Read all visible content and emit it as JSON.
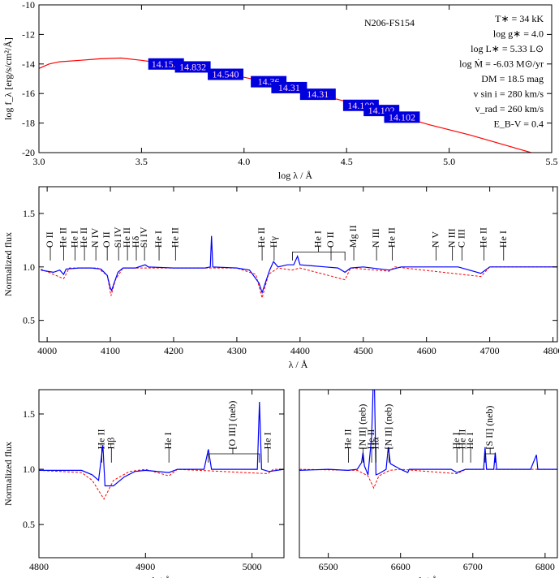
{
  "chart_data": [
    {
      "type": "sed",
      "title": "N206-FS154",
      "xlabel": "log λ / Å",
      "ylabel": "log f_λ [erg/s/cm²/Å]",
      "params": [
        "T∗ = 34 kK",
        "log g∗ = 4.0",
        "log L∗ = 5.33 L⊙",
        "log Ṁ = -6.03 M⊙/yr",
        "DM = 18.5 mag",
        "v sin i = 280 km/s",
        "v_rad = 260 km/s",
        "E_B-V = 0.4"
      ],
      "xlim": [
        3.0,
        5.5
      ],
      "ylim": [
        -20,
        -10
      ],
      "xticks": [
        {
          "value": 3,
          "label": "3.0"
        },
        3.5,
        {
          "value": 4,
          "label": "4.0"
        },
        4.5,
        {
          "value": 5,
          "label": "5.0"
        },
        5.5
      ],
      "yticks": [
        -20,
        -18,
        -16,
        -14,
        -12,
        -10
      ],
      "series": [
        {
          "color": "#ff0000",
          "x": [
            3.0,
            3.05,
            3.1,
            3.2,
            3.3,
            3.4,
            3.5,
            3.6,
            3.7,
            3.8,
            3.9,
            4.0,
            4.1,
            4.2,
            4.3,
            4.4,
            4.5,
            4.6,
            4.7,
            4.8,
            4.9,
            5.0,
            5.1,
            5.2,
            5.3,
            5.4
          ],
          "values": [
            -14.3,
            -14.0,
            -13.85,
            -13.75,
            -13.65,
            -13.6,
            -13.75,
            -13.95,
            -14.15,
            -14.4,
            -14.65,
            -14.9,
            -15.2,
            -15.5,
            -15.85,
            -16.2,
            -16.55,
            -16.9,
            -17.3,
            -17.7,
            -18.1,
            -18.45,
            -18.8,
            -19.2,
            -19.6,
            -20.0
          ]
        }
      ],
      "photometry_color": "#0000dd",
      "photometry": [
        {
          "x": 3.62,
          "y": -14.0,
          "label": "14.15.0"
        },
        {
          "x": 3.75,
          "y": -14.2,
          "label": "14.832"
        },
        {
          "x": 3.91,
          "y": -14.7,
          "label": "14.540"
        },
        {
          "x": 4.12,
          "y": -15.2,
          "label": "14.36"
        },
        {
          "x": 4.22,
          "y": -15.6,
          "label": "14.31"
        },
        {
          "x": 4.36,
          "y": -16.05,
          "label": "14.31"
        },
        {
          "x": 4.57,
          "y": -16.8,
          "label": "14.109"
        },
        {
          "x": 4.67,
          "y": -17.15,
          "label": "14.102"
        },
        {
          "x": 4.77,
          "y": -17.6,
          "label": "14.102"
        }
      ]
    },
    {
      "type": "spectrum",
      "xlabel": "λ / Å",
      "ylabel": "Normalized flux",
      "xlim": [
        3987,
        4807
      ],
      "ylim": [
        0.3,
        1.75
      ],
      "xticks": [
        4000,
        4100,
        4200,
        4300,
        4400,
        4500,
        4600,
        4700,
        4800
      ],
      "yticks": [
        0.5,
        {
          "value": 1,
          "label": "1.0"
        },
        1.5
      ],
      "series": [
        {
          "color": "#ff0000",
          "dashed": true,
          "x": [
            3990,
            4026,
            4035,
            4080,
            4095,
            4101,
            4108,
            4120,
            4300,
            4330,
            4340,
            4350,
            4365,
            4387,
            4400,
            4471,
            4480,
            4541,
            4550,
            4686,
            4700,
            4807
          ],
          "values": [
            0.98,
            0.89,
            0.99,
            0.99,
            0.92,
            0.73,
            0.88,
            0.99,
            0.99,
            0.93,
            0.71,
            0.93,
            0.99,
            0.97,
            0.99,
            0.88,
            0.99,
            0.96,
            1.0,
            0.91,
            1.0,
            1.0
          ]
        },
        {
          "color": "#0000ff",
          "x": [
            3990,
            4000,
            4010,
            4020,
            4026,
            4030,
            4050,
            4070,
            4085,
            4095,
            4100,
            4102,
            4106,
            4112,
            4120,
            4140,
            4155,
            4160,
            4200,
            4250,
            4258,
            4260,
            4262,
            4300,
            4320,
            4335,
            4340,
            4345,
            4352,
            4358,
            4365,
            4380,
            4390,
            4396,
            4400,
            4420,
            4440,
            4460,
            4471,
            4480,
            4500,
            4541,
            4560,
            4600,
            4650,
            4686,
            4700,
            4750,
            4800,
            4807
          ],
          "values": [
            0.97,
            0.96,
            0.95,
            0.97,
            0.93,
            0.98,
            0.99,
            0.99,
            0.98,
            0.92,
            0.8,
            0.78,
            0.85,
            0.95,
            0.99,
            0.99,
            1.02,
            1.0,
            0.99,
            0.99,
            1.0,
            1.29,
            1.0,
            0.99,
            0.97,
            0.85,
            0.76,
            0.85,
            0.97,
            1.05,
            1.0,
            1.02,
            1.02,
            1.1,
            1.02,
            1.01,
            1.0,
            0.99,
            0.95,
            0.99,
            1.0,
            0.97,
            1.0,
            1.0,
            1.0,
            0.94,
            1.0,
            1.0,
            1.0,
            1.0
          ]
        }
      ],
      "line_labels": [
        {
          "x": 4005,
          "label": "O II"
        },
        {
          "x": 4026,
          "label": "He II"
        },
        {
          "x": 4044,
          "label": "He I"
        },
        {
          "x": 4059,
          "label": "He II"
        },
        {
          "x": 4077,
          "label": "N IV"
        },
        {
          "x": 4095,
          "label": "O II"
        },
        {
          "x": 4113,
          "label": "Si IV"
        },
        {
          "x": 4127,
          "label": "He II"
        },
        {
          "x": 4141,
          "label": "Hδ"
        },
        {
          "x": 4154,
          "label": "Si IV"
        },
        {
          "x": 4177,
          "label": "He I"
        },
        {
          "x": 4203,
          "label": "He II"
        },
        {
          "x": 4340,
          "label": "He II"
        },
        {
          "x": 4359,
          "label": "Hγ"
        },
        {
          "x": 4429,
          "label": "He I",
          "span": [
            4388,
            4471
          ]
        },
        {
          "x": 4449,
          "label": "O II"
        },
        {
          "x": 4485,
          "label": "Mg II"
        },
        {
          "x": 4521,
          "label": "N III"
        },
        {
          "x": 4546,
          "label": "He II"
        },
        {
          "x": 4615,
          "label": "N V"
        },
        {
          "x": 4641,
          "label": "N III"
        },
        {
          "x": 4656,
          "label": "C III"
        },
        {
          "x": 4691,
          "label": "He II"
        },
        {
          "x": 4722,
          "label": "He I"
        }
      ]
    },
    {
      "type": "spectrum",
      "xlabel": "λ / Å",
      "ylabel": "Normalized flux",
      "xlim": [
        4800,
        5030
      ],
      "ylim": [
        0.2,
        1.72
      ],
      "xticks": [
        4800,
        4900,
        5000
      ],
      "yticks": [
        0.5,
        {
          "value": 1,
          "label": "1.0"
        },
        1.5
      ],
      "series": [
        {
          "color": "#ff0000",
          "dashed": true,
          "x": [
            4800,
            4840,
            4850,
            4861,
            4870,
            4885,
            4900,
            4922,
            4930,
            5015,
            5020,
            5030
          ],
          "values": [
            0.99,
            0.97,
            0.9,
            0.73,
            0.9,
            0.98,
            1.0,
            0.94,
            1.0,
            0.96,
            1.0,
            1.0
          ]
        },
        {
          "color": "#0000ff",
          "x": [
            4800,
            4840,
            4850,
            4856,
            4860,
            4862,
            4870,
            4880,
            4890,
            4900,
            4922,
            4930,
            4955,
            4959,
            4962,
            5000,
            5005,
            5007,
            5009,
            5016,
            5030
          ],
          "values": [
            0.99,
            0.99,
            0.95,
            0.9,
            1.22,
            0.85,
            0.85,
            0.93,
            0.98,
            0.99,
            0.97,
            1.0,
            1.0,
            1.18,
            1.0,
            1.0,
            1.0,
            1.61,
            1.0,
            0.98,
            1.0
          ]
        }
      ],
      "line_labels": [
        {
          "x": 4859,
          "label": "He II"
        },
        {
          "x": 4868,
          "label": "Hβ"
        },
        {
          "x": 4922,
          "label": "He I"
        },
        {
          "x": 4982,
          "label": "[O III] (neb)",
          "span": [
            4959,
            5007
          ]
        },
        {
          "x": 5015,
          "label": "He I"
        }
      ]
    },
    {
      "type": "spectrum",
      "xlabel": "λ / Å",
      "xlim": [
        6460,
        6817
      ],
      "ylim": [
        0.2,
        1.72
      ],
      "xticks": [
        6500,
        6600,
        6700,
        6800
      ],
      "series": [
        {
          "color": "#ff0000",
          "dashed": true,
          "x": [
            6460,
            6540,
            6555,
            6563,
            6570,
            6585,
            6600,
            6678,
            6690,
            6817
          ],
          "values": [
            1.0,
            0.99,
            0.94,
            0.83,
            0.94,
            0.99,
            1.0,
            0.96,
            1.0,
            1.0
          ]
        },
        {
          "color": "#0000ff",
          "x": [
            6460,
            6500,
            6527,
            6540,
            6546,
            6548,
            6550,
            6555,
            6560,
            6562,
            6564,
            6566,
            6570,
            6580,
            6583,
            6586,
            6600,
            6610,
            6612,
            6670,
            6678,
            6690,
            6715,
            6717,
            6719,
            6729,
            6731,
            6733,
            6780,
            6788,
            6790,
            6817
          ],
          "values": [
            0.99,
            1.0,
            0.99,
            1.0,
            1.06,
            1.15,
            1.03,
            0.95,
            1.3,
            1.75,
            1.72,
            0.95,
            0.96,
            1.0,
            1.2,
            1.05,
            1.0,
            0.97,
            1.0,
            1.0,
            0.97,
            1.0,
            1.0,
            1.2,
            1.0,
            1.0,
            1.15,
            1.0,
            1.0,
            1.13,
            1.0,
            1.0
          ]
        }
      ],
      "line_labels": [
        {
          "x": 6528,
          "label": "He II"
        },
        {
          "x": 6548,
          "label": "[N II] (neb)"
        },
        {
          "x": 6560,
          "label": "He II"
        },
        {
          "x": 6566,
          "label": "Hα"
        },
        {
          "x": 6584,
          "label": "[N II] (neb)"
        },
        {
          "x": 6678,
          "label": "He I"
        },
        {
          "x": 6686,
          "label": "He II"
        },
        {
          "x": 6697,
          "label": "He I"
        },
        {
          "x": 6724,
          "label": "[S II] (neb)",
          "span": [
            6717,
            6731
          ]
        }
      ]
    }
  ]
}
